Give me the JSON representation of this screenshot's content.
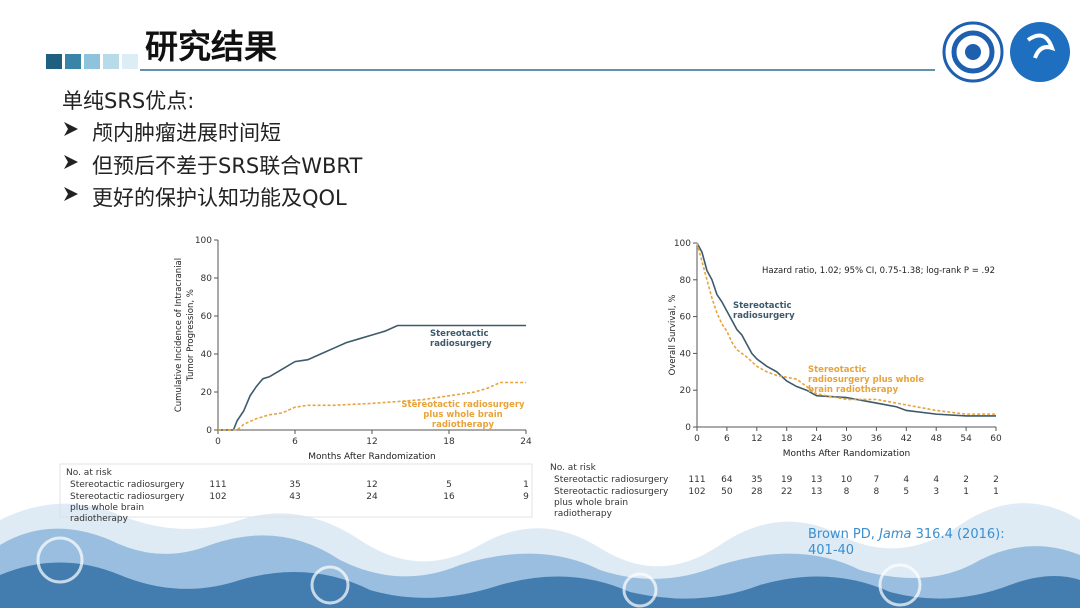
{
  "header": {
    "title": "研究结果"
  },
  "body": {
    "lead": "单纯SRS优点:",
    "bullets": [
      "颅内肿瘤进展时间短",
      "但预后不差于SRS联合WBRT",
      "更好的保护认知功能及QOL"
    ]
  },
  "citation": [
    "Brown PD, ",
    "Jama",
    " 316.4 (2016):",
    "401-40"
  ],
  "chart_data": [
    {
      "type": "line",
      "x_label": "Months After Randomization",
      "y_label": [
        "Cumulative Incidence of Intracranial",
        "Tumor Progression, %"
      ],
      "xlim": [
        0,
        24
      ],
      "xticks": [
        0,
        6,
        12,
        18,
        24
      ],
      "ylim": [
        0,
        100
      ],
      "yticks": [
        0,
        20,
        40,
        60,
        80,
        100
      ],
      "series": [
        {
          "name": "Stereotactic radiosurgery",
          "color": "#3d5a6c",
          "dash": false,
          "x": [
            0,
            1.2,
            1.5,
            2,
            2.5,
            3,
            3.5,
            4,
            5,
            6,
            7,
            8,
            9,
            10,
            11,
            12,
            13,
            14,
            24
          ],
          "values": [
            0,
            0,
            5,
            10,
            18,
            23,
            27,
            28,
            32,
            36,
            37,
            40,
            43,
            46,
            48,
            50,
            52,
            55,
            55
          ]
        },
        {
          "name": "Stereotactic radiosurgery plus whole brain radiotherapy",
          "color": "#e8a33a",
          "dash": true,
          "x": [
            0,
            1.5,
            2,
            3,
            4,
            5,
            6,
            7,
            9,
            12,
            14,
            16,
            18,
            20,
            21,
            22,
            24
          ],
          "values": [
            0,
            0,
            3,
            6,
            8,
            9,
            12,
            13,
            13,
            14,
            15,
            16,
            18,
            20,
            22,
            25,
            25
          ]
        }
      ],
      "risk_table": {
        "label": "No. at risk",
        "rows": [
          [
            "111",
            "35",
            "12",
            "5",
            "1"
          ],
          [
            "102",
            "43",
            "24",
            "16",
            "9"
          ]
        ]
      }
    },
    {
      "type": "line",
      "annotation": "Hazard ratio, 1.02;  95% CI, 0.75-1.38; log-rank P = .92",
      "x_label": "Months After Randomization",
      "y_label": [
        "Overall Survival, %"
      ],
      "xlim": [
        0,
        60
      ],
      "xticks": [
        0,
        6,
        12,
        18,
        24,
        30,
        36,
        42,
        48,
        54,
        60
      ],
      "ylim": [
        0,
        100
      ],
      "yticks": [
        0,
        20,
        40,
        60,
        80,
        100
      ],
      "series": [
        {
          "name": "Stereotactic radiosurgery",
          "color": "#3d5a6c",
          "dash": false,
          "x": [
            0,
            1,
            2,
            3,
            4,
            5,
            6,
            7,
            8,
            9,
            10,
            11,
            12,
            14,
            16,
            18,
            20,
            22,
            24,
            30,
            36,
            40,
            42,
            48,
            54,
            60
          ],
          "values": [
            100,
            95,
            85,
            80,
            72,
            68,
            63,
            58,
            53,
            50,
            45,
            40,
            37,
            33,
            30,
            25,
            22,
            20,
            17,
            16,
            13,
            11,
            9,
            7,
            6,
            6
          ]
        },
        {
          "name": "Stereotactic radiosurgery plus whole brain radiotherapy",
          "color": "#e8a33a",
          "dash": true,
          "x": [
            0,
            1,
            2,
            3,
            4,
            5,
            6,
            7,
            8,
            9,
            10,
            12,
            14,
            16,
            18,
            20,
            24,
            30,
            36,
            42,
            48,
            54,
            60
          ],
          "values": [
            100,
            90,
            80,
            70,
            62,
            56,
            52,
            46,
            42,
            40,
            38,
            33,
            30,
            28,
            27,
            26,
            18,
            15,
            15,
            12,
            9,
            7,
            7
          ]
        }
      ],
      "risk_table": {
        "label": "No. at risk",
        "rows": [
          [
            "111",
            "64",
            "35",
            "19",
            "13",
            "10",
            "7",
            "4",
            "4",
            "2",
            "2"
          ],
          [
            "102",
            "50",
            "28",
            "22",
            "13",
            "8",
            "8",
            "5",
            "3",
            "1",
            "1"
          ]
        ]
      }
    }
  ]
}
